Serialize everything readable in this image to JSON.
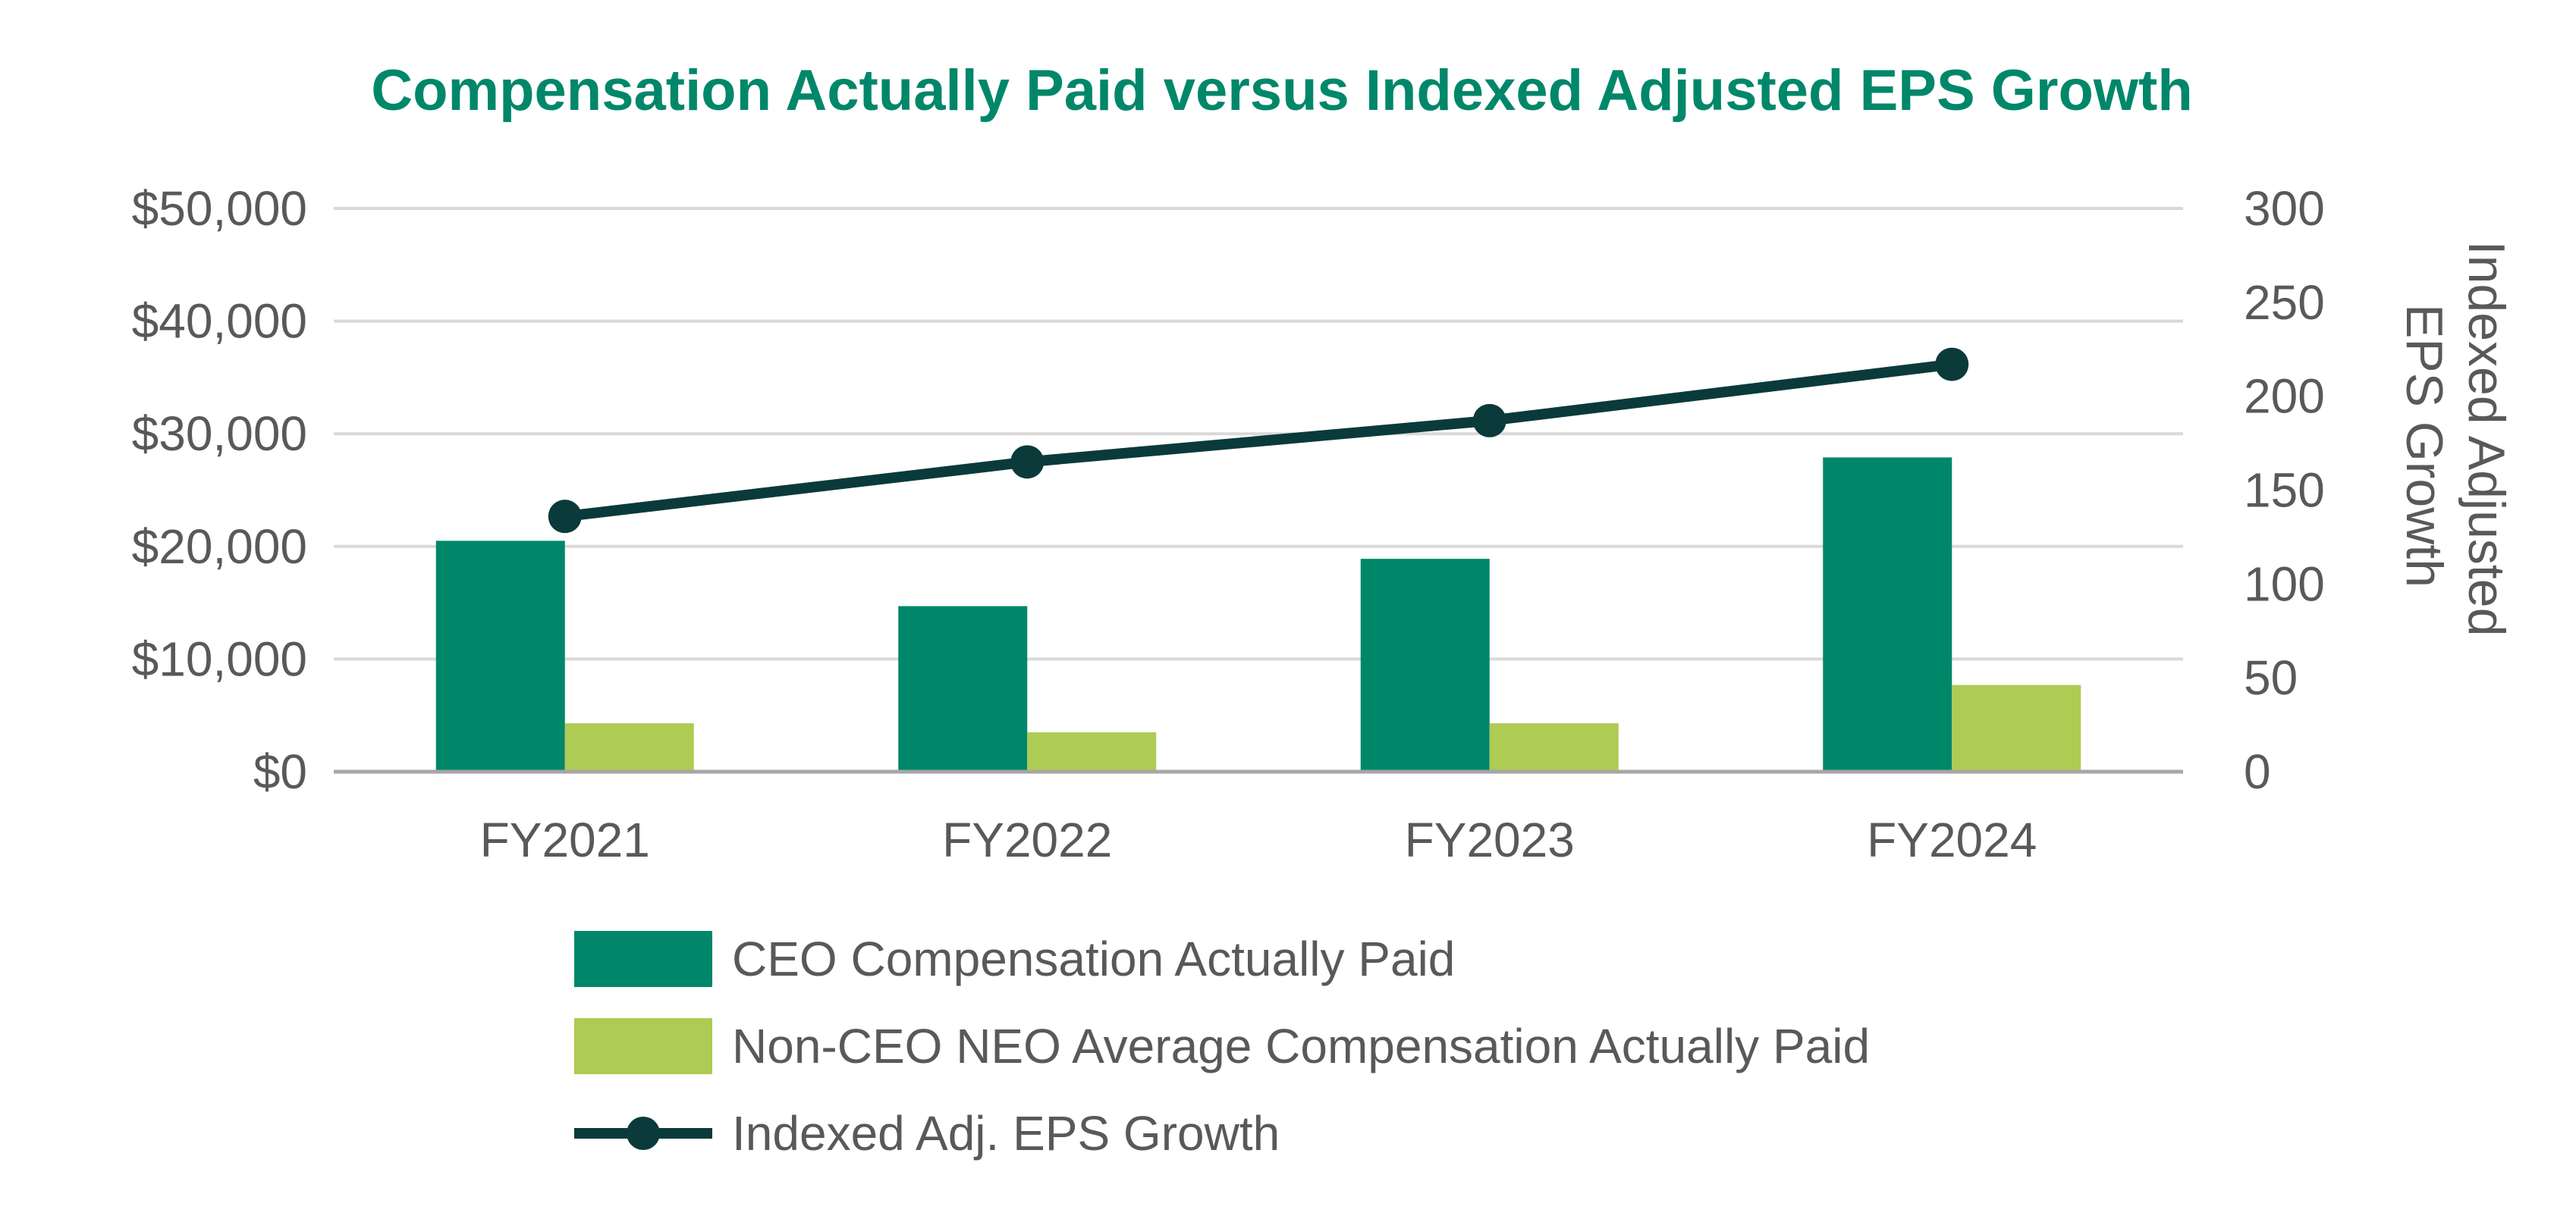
{
  "chart_data": {
    "type": "bar",
    "title": "Compensation Actually Paid versus Indexed Adjusted EPS Growth",
    "categories": [
      "FY2021",
      "FY2022",
      "FY2023",
      "FY2024"
    ],
    "series": [
      {
        "name": "CEO Compensation Actually Paid",
        "kind": "bar",
        "axis": "left",
        "color": "#00876a",
        "values": [
          20500,
          14700,
          18900,
          27900
        ]
      },
      {
        "name": "Non-CEO NEO Average Compensation Actually Paid",
        "kind": "bar",
        "axis": "left",
        "color": "#aecb53",
        "values": [
          4300,
          3500,
          4300,
          7700
        ]
      },
      {
        "name": "Indexed Adj. EPS Growth",
        "kind": "line",
        "axis": "right",
        "color": "#0b3a3a",
        "values": [
          136,
          165,
          187,
          217
        ]
      }
    ],
    "y_left": {
      "min": 0,
      "max": 50000,
      "ticks": [
        "$0",
        "$10,000",
        "$20,000",
        "$30,000",
        "$40,000",
        "$50,000"
      ],
      "label": ""
    },
    "y_right": {
      "min": 0,
      "max": 300,
      "ticks": [
        "0",
        "50",
        "100",
        "150",
        "200",
        "250",
        "300"
      ],
      "label_lines": [
        "Indexed Adjusted",
        "EPS Growth"
      ]
    },
    "grid": true,
    "legend_position": "bottom",
    "colors": {
      "title": "#00876a",
      "gridline": "#d9d9d9",
      "axis": "#a6a6a6",
      "text": "#595959"
    }
  }
}
